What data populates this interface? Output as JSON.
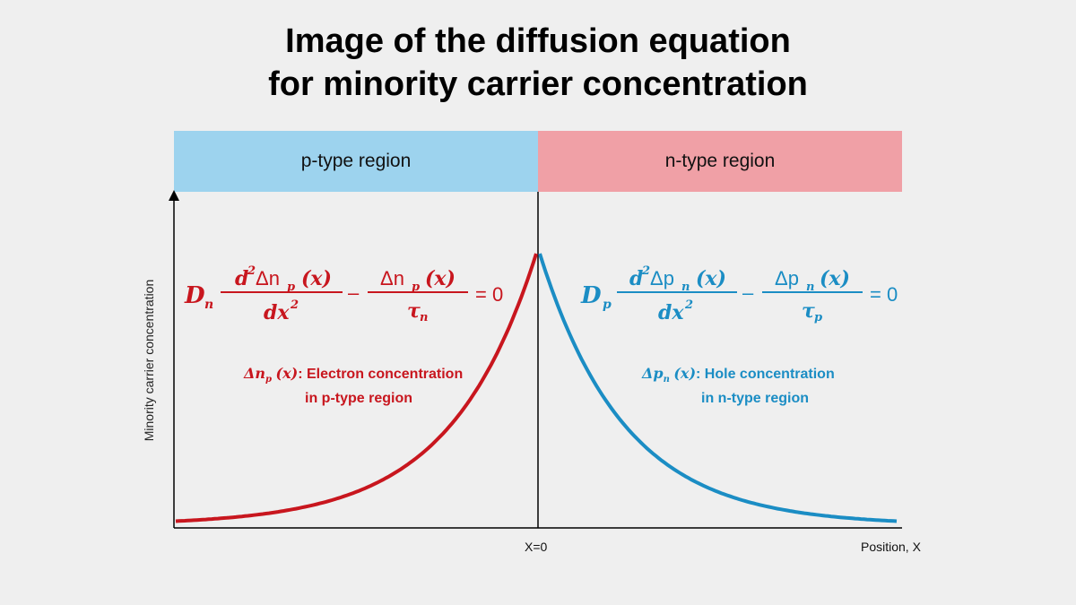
{
  "title": {
    "line1": "Image of the diffusion equation",
    "line2": "for minority carrier concentration"
  },
  "regions": {
    "p_label": "p-type region",
    "n_label": "n-type region",
    "p_color": "#9dd3ee",
    "n_color": "#f0a0a6"
  },
  "axes": {
    "ylabel": "Minority carrier concentration",
    "xlabel": "Position, X",
    "origin_label": "X=0"
  },
  "equations": {
    "left": {
      "D": "D",
      "D_sub": "n",
      "num1_d": "d",
      "num1_sup": "2",
      "num1_var": "Δn",
      "num1_sub": "p",
      "num1_arg": "(x)",
      "den1": "dx",
      "den1_sup": "2",
      "minus": "–",
      "num2_var": "Δn",
      "num2_sub": "p",
      "num2_arg": "(x)",
      "den2": "τ",
      "den2_sub": "n",
      "rhs": "= 0",
      "color": "#c8161e"
    },
    "right": {
      "D": "D",
      "D_sub": "p",
      "num1_d": "d",
      "num1_sup": "2",
      "num1_var": "Δp",
      "num1_sub": "n",
      "num1_arg": "(x)",
      "den1": "dx",
      "den1_sup": "2",
      "minus": "–",
      "num2_var": "Δp",
      "num2_sub": "n",
      "num2_arg": "(x)",
      "den2": "τ",
      "den2_sub": "p",
      "rhs": "= 0",
      "color": "#1b8dc4"
    }
  },
  "descriptions": {
    "left_line1": "Δn",
    "left_sub": "p",
    "left_arg": "(x)",
    "left_rest": ": Electron concentration",
    "left_line2": "in p-type region",
    "right_line1": "Δp",
    "right_sub": "n",
    "right_arg": "(x)",
    "right_rest": ": Hole concentration",
    "right_line2": "in n-type region"
  },
  "curves": {
    "left_color": "#c8161e",
    "right_color": "#1b8dc4"
  }
}
